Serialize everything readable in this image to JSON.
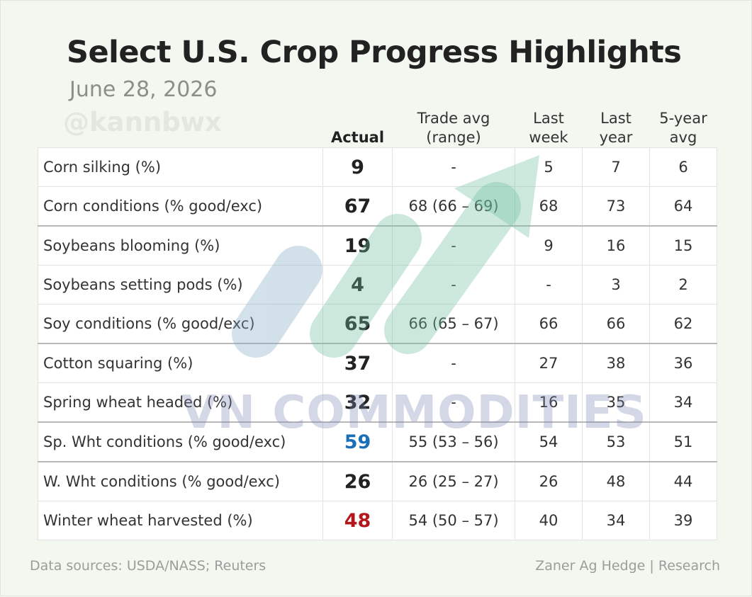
{
  "header": {
    "title": "Select U.S. Crop Progress Highlights",
    "date": "June 28, 2026",
    "watermark_handle": "@kannbwx"
  },
  "table": {
    "columns": [
      "Actual",
      "Trade avg\n(range)",
      "Last\nweek",
      "Last\nyear",
      "5-year\navg"
    ],
    "rows": [
      {
        "cells": [
          "Corn silking (%)",
          "9",
          "-",
          "5",
          "7",
          "6"
        ]
      },
      {
        "cells": [
          "Corn conditions (% good/exc)",
          "67",
          "68 (66 – 69)",
          "68",
          "73",
          "64"
        ]
      },
      {
        "cells": [
          "Soybeans blooming (%)",
          "19",
          "-",
          "9",
          "16",
          "15"
        ]
      },
      {
        "cells": [
          "Soybeans setting pods (%)",
          "4",
          "-",
          "-",
          "3",
          "2"
        ]
      },
      {
        "cells": [
          "Soy conditions (% good/exc)",
          "65",
          "66 (65 – 67)",
          "66",
          "66",
          "62"
        ]
      },
      {
        "cells": [
          "Cotton squaring (%)",
          "37",
          "-",
          "27",
          "38",
          "36"
        ]
      },
      {
        "cells": [
          "Spring wheat headed (%)",
          "32",
          "-",
          "16",
          "35",
          "34"
        ]
      },
      {
        "cells": [
          "Sp. Wht conditions (% good/exc)",
          "59",
          "55 (53 – 56)",
          "54",
          "53",
          "51"
        ],
        "actual_color": "#1b6fb8"
      },
      {
        "cells": [
          "W. Wht conditions (% good/exc)",
          "26",
          "26 (25 – 27)",
          "26",
          "48",
          "44"
        ]
      },
      {
        "cells": [
          "Winter wheat harvested (%)",
          "48",
          "54 (50 – 57)",
          "40",
          "34",
          "39"
        ],
        "actual_color": "#b3161b"
      }
    ]
  },
  "footer": {
    "sources": "Data sources: USDA/NASS; Reuters",
    "credit": "Zaner Ag Hedge | Research"
  },
  "watermark_brand": "VN COMMODITIES"
}
